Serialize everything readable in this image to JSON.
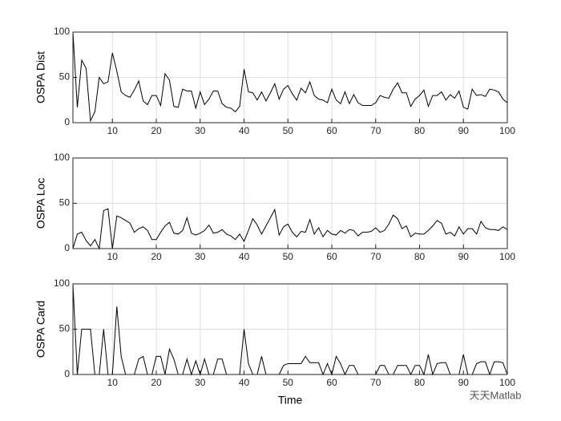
{
  "chart_data": [
    {
      "type": "line",
      "ylabel": "OSPA Dist",
      "xlim": [
        1,
        100
      ],
      "ylim": [
        0,
        100
      ],
      "xticks": [
        10,
        20,
        30,
        40,
        50,
        60,
        70,
        80,
        90,
        100
      ],
      "yticks": [
        0,
        50,
        100
      ],
      "grid": true,
      "color": "#000000",
      "x": [
        1,
        2,
        3,
        4,
        5,
        6,
        7,
        8,
        9,
        10,
        11,
        12,
        13,
        14,
        15,
        16,
        17,
        18,
        19,
        20,
        21,
        22,
        23,
        24,
        25,
        26,
        27,
        28,
        29,
        30,
        31,
        32,
        33,
        34,
        35,
        36,
        37,
        38,
        39,
        40,
        41,
        42,
        43,
        44,
        45,
        46,
        47,
        48,
        49,
        50,
        51,
        52,
        53,
        54,
        55,
        56,
        57,
        58,
        59,
        60,
        61,
        62,
        63,
        64,
        65,
        66,
        67,
        68,
        69,
        70,
        71,
        72,
        73,
        74,
        75,
        76,
        77,
        78,
        79,
        80,
        81,
        82,
        83,
        84,
        85,
        86,
        87,
        88,
        89,
        90,
        91,
        92,
        93,
        94,
        95,
        96,
        97,
        98,
        99,
        100
      ],
      "values": [
        100,
        17,
        69,
        60,
        2,
        12,
        50,
        43,
        45,
        77,
        57,
        34,
        30,
        28,
        36,
        46,
        24,
        20,
        30,
        30,
        19,
        54,
        47,
        18,
        17,
        37,
        35,
        35,
        16,
        34,
        20,
        26,
        35,
        35,
        21,
        17,
        16,
        12,
        18,
        59,
        34,
        33,
        25,
        34,
        24,
        33,
        43,
        26,
        37,
        41,
        32,
        25,
        38,
        33,
        45,
        30,
        26,
        25,
        22,
        37,
        25,
        21,
        34,
        21,
        31,
        22,
        19,
        19,
        19,
        22,
        30,
        28,
        27,
        37,
        44,
        33,
        33,
        18,
        26,
        30,
        36,
        18,
        30,
        30,
        34,
        25,
        31,
        27,
        35,
        17,
        15,
        37,
        30,
        31,
        29,
        37,
        36,
        34,
        26,
        22
      ]
    },
    {
      "type": "line",
      "ylabel": "OSPA Loc",
      "xlim": [
        1,
        100
      ],
      "ylim": [
        0,
        100
      ],
      "xticks": [
        10,
        20,
        30,
        40,
        50,
        60,
        70,
        80,
        90,
        100
      ],
      "yticks": [
        0,
        50,
        100
      ],
      "grid": true,
      "color": "#000000",
      "x": [
        1,
        2,
        3,
        4,
        5,
        6,
        7,
        8,
        9,
        10,
        11,
        12,
        13,
        14,
        15,
        16,
        17,
        18,
        19,
        20,
        21,
        22,
        23,
        24,
        25,
        26,
        27,
        28,
        29,
        30,
        31,
        32,
        33,
        34,
        35,
        36,
        37,
        38,
        39,
        40,
        41,
        42,
        43,
        44,
        45,
        46,
        47,
        48,
        49,
        50,
        51,
        52,
        53,
        54,
        55,
        56,
        57,
        58,
        59,
        60,
        61,
        62,
        63,
        64,
        65,
        66,
        67,
        68,
        69,
        70,
        71,
        72,
        73,
        74,
        75,
        76,
        77,
        78,
        79,
        80,
        81,
        82,
        83,
        84,
        85,
        86,
        87,
        88,
        89,
        90,
        91,
        92,
        93,
        94,
        95,
        96,
        97,
        98,
        99,
        100
      ],
      "values": [
        0,
        16,
        18,
        9,
        3,
        10,
        0,
        42,
        44,
        0,
        36,
        34,
        31,
        28,
        18,
        22,
        24,
        20,
        10,
        10,
        18,
        25,
        29,
        17,
        16,
        20,
        34,
        17,
        15,
        17,
        20,
        26,
        17,
        18,
        21,
        16,
        14,
        10,
        16,
        8,
        20,
        33,
        26,
        16,
        25,
        34,
        43,
        15,
        24,
        27,
        18,
        13,
        19,
        18,
        32,
        16,
        23,
        13,
        20,
        16,
        15,
        20,
        17,
        21,
        20,
        14,
        18,
        18,
        19,
        23,
        18,
        20,
        27,
        37,
        33,
        22,
        25,
        13,
        17,
        16,
        16,
        20,
        25,
        31,
        28,
        16,
        18,
        14,
        24,
        16,
        22,
        22,
        16,
        30,
        23,
        21,
        21,
        20,
        24,
        21
      ]
    },
    {
      "type": "line",
      "ylabel": "OSPA Card",
      "xlabel": "Time",
      "xlim": [
        1,
        100
      ],
      "ylim": [
        0,
        100
      ],
      "xticks": [
        10,
        20,
        30,
        40,
        50,
        60,
        70,
        80,
        90,
        100
      ],
      "yticks": [
        0,
        50,
        100
      ],
      "grid": true,
      "color": "#000000",
      "x": [
        1,
        2,
        3,
        4,
        5,
        6,
        7,
        8,
        9,
        10,
        11,
        12,
        13,
        14,
        15,
        16,
        17,
        18,
        19,
        20,
        21,
        22,
        23,
        24,
        25,
        26,
        27,
        28,
        29,
        30,
        31,
        32,
        33,
        34,
        35,
        36,
        37,
        38,
        39,
        40,
        41,
        42,
        43,
        44,
        45,
        46,
        47,
        48,
        49,
        50,
        51,
        52,
        53,
        54,
        55,
        56,
        57,
        58,
        59,
        60,
        61,
        62,
        63,
        64,
        65,
        66,
        67,
        68,
        69,
        70,
        71,
        72,
        73,
        74,
        75,
        76,
        77,
        78,
        79,
        80,
        81,
        82,
        83,
        84,
        85,
        86,
        87,
        88,
        89,
        90,
        91,
        92,
        93,
        94,
        95,
        96,
        97,
        98,
        99,
        100
      ],
      "values": [
        100,
        0,
        50,
        50,
        50,
        0,
        0,
        50,
        0,
        0,
        75,
        20,
        0,
        0,
        0,
        17,
        20,
        0,
        0,
        20,
        20,
        0,
        28,
        17,
        0,
        0,
        17,
        0,
        15,
        0,
        17,
        0,
        0,
        17,
        17,
        0,
        0,
        0,
        0,
        50,
        12,
        0,
        0,
        20,
        0,
        0,
        0,
        0,
        10,
        12,
        12,
        12,
        12,
        20,
        13,
        13,
        13,
        0,
        12,
        0,
        20,
        12,
        0,
        10,
        10,
        0,
        0,
        0,
        0,
        0,
        10,
        10,
        0,
        0,
        10,
        10,
        10,
        0,
        10,
        10,
        0,
        22,
        0,
        12,
        13,
        13,
        0,
        0,
        0,
        22,
        0,
        0,
        12,
        14,
        14,
        0,
        14,
        14,
        13,
        0
      ]
    }
  ],
  "watermark": "天天Matlab"
}
